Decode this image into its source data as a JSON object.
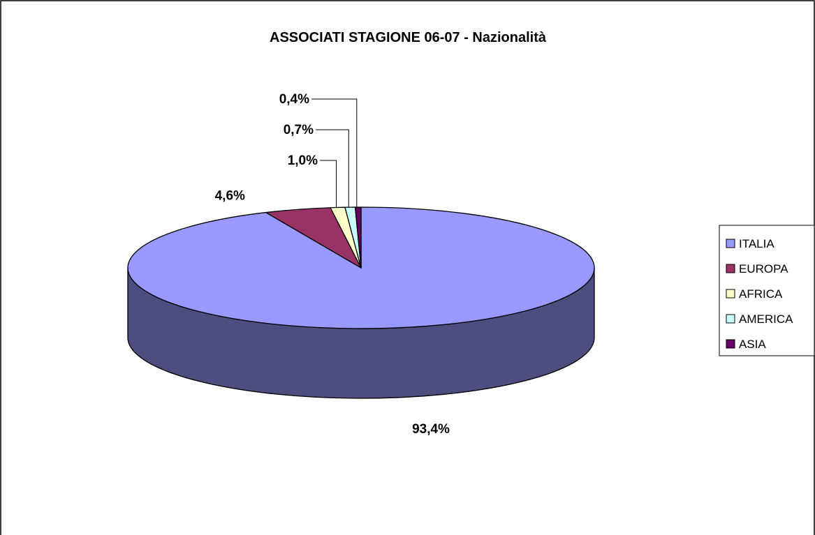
{
  "chart_data": {
    "type": "pie",
    "title": "ASSOCIATI STAGIONE 06-07 - Nazionalità",
    "legend_position": "right",
    "slices": [
      {
        "name": "ITALIA",
        "value": 93.4,
        "label": "93,4%",
        "color": "#9999ff",
        "side_color": "#4d4d80"
      },
      {
        "name": "EUROPA",
        "value": 4.6,
        "label": "4,6%",
        "color": "#993366",
        "side_color": "#4d1a33"
      },
      {
        "name": "AFRICA",
        "value": 1.0,
        "label": "1,0%",
        "color": "#ffffcc",
        "side_color": "#808066"
      },
      {
        "name": "AMERICA",
        "value": 0.7,
        "label": "0,7%",
        "color": "#ccffff",
        "side_color": "#668080"
      },
      {
        "name": "ASIA",
        "value": 0.4,
        "label": "0,4%",
        "color": "#660066",
        "side_color": "#330033"
      }
    ]
  }
}
